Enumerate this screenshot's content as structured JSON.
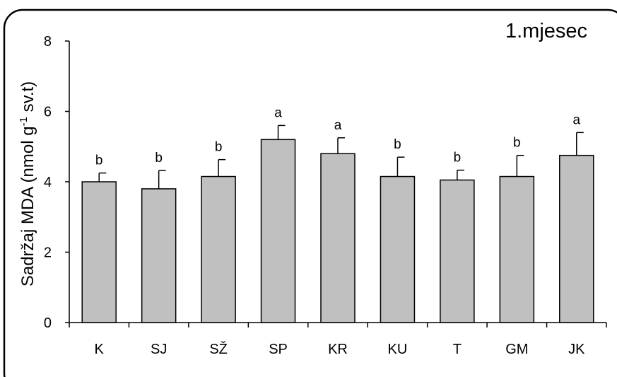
{
  "chart_data": {
    "type": "bar",
    "title": "1.mjesec",
    "ylabel": {
      "prefix": "Sadržaj MDA (nmol g",
      "superscript": "-1",
      "suffix": " sv.t)"
    },
    "xlabel": "",
    "categories": [
      "K",
      "SJ",
      "SŽ",
      "SP",
      "KR",
      "KU",
      "T",
      "GM",
      "JK"
    ],
    "values": [
      4.0,
      3.8,
      4.15,
      5.2,
      4.8,
      4.15,
      4.05,
      4.15,
      4.75
    ],
    "errors": [
      0.25,
      0.52,
      0.48,
      0.4,
      0.45,
      0.55,
      0.28,
      0.6,
      0.65
    ],
    "labels": [
      "b",
      "b",
      "b",
      "a",
      "a",
      "b",
      "b",
      "b",
      "a"
    ],
    "ylim": [
      0,
      8
    ],
    "yticks": [
      0,
      2,
      4,
      6,
      8
    ],
    "grid": false,
    "bar_color": "#c0c0c0"
  }
}
